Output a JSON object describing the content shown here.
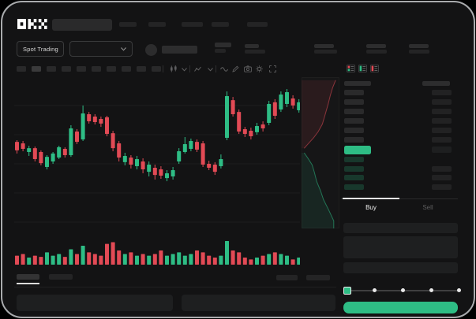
{
  "brand": {
    "name": "OKX"
  },
  "colors": {
    "up_green": "#2ebd85",
    "down_red": "#e24a55",
    "buy_button": "#2ebd85",
    "tab_underline": "#e8e8e8",
    "grid_line": "rgba(255,255,255,0.045)"
  },
  "market_bar": {
    "market_type_selector": "Spot Trading"
  },
  "toolbar": {
    "interval_buttons": 10,
    "active_interval_index": 1
  },
  "order_book": {
    "ask_rows": 6,
    "bid_rows": 4
  },
  "trade_panel": {
    "buy_tab": "Buy",
    "sell_tab": "Sell",
    "slider_stops": 5,
    "slider_value_index": 0
  },
  "chart_data": [
    {
      "type": "candlestick",
      "title": "",
      "xlabel": "",
      "ylabel": "",
      "note": "price axis unlabeled in mockup; OHLC in relative 0-100 scale",
      "ylim": [
        0,
        100
      ],
      "grid": true,
      "candles": [
        [
          58.9,
          60.0,
          51.1,
          53.2
        ],
        [
          57.9,
          59.5,
          52.6,
          54.2
        ],
        [
          52.1,
          56.3,
          49.5,
          54.7
        ],
        [
          54.7,
          55.8,
          45.8,
          47.4
        ],
        [
          52.1,
          53.2,
          43.2,
          44.7
        ],
        [
          42.1,
          50.0,
          40.5,
          48.9
        ],
        [
          45.8,
          52.1,
          44.2,
          51.1
        ],
        [
          48.4,
          56.3,
          47.4,
          55.3
        ],
        [
          54.2,
          55.3,
          48.4,
          50.0
        ],
        [
          50.0,
          70.0,
          48.9,
          67.9
        ],
        [
          65.8,
          67.4,
          57.4,
          58.9
        ],
        [
          60.5,
          83.2,
          59.5,
          77.9
        ],
        [
          77.4,
          78.9,
          71.1,
          72.6
        ],
        [
          75.8,
          77.4,
          70.5,
          72.1
        ],
        [
          74.2,
          75.8,
          68.9,
          71.1
        ],
        [
          75.3,
          76.3,
          62.6,
          64.2
        ],
        [
          64.7,
          66.3,
          52.6,
          54.7
        ],
        [
          57.9,
          59.5,
          45.8,
          48.4
        ],
        [
          45.3,
          51.6,
          43.2,
          49.5
        ],
        [
          48.4,
          50.0,
          41.1,
          43.7
        ],
        [
          42.6,
          49.5,
          40.5,
          47.4
        ],
        [
          45.8,
          47.9,
          37.9,
          40.5
        ],
        [
          38.9,
          45.8,
          35.8,
          43.7
        ],
        [
          41.6,
          43.7,
          33.7,
          36.8
        ],
        [
          40.5,
          42.6,
          34.2,
          36.3
        ],
        [
          34.7,
          40.0,
          32.6,
          37.9
        ],
        [
          35.8,
          42.1,
          33.7,
          40.0
        ],
        [
          45.8,
          54.7,
          44.2,
          52.6
        ],
        [
          52.1,
          62.1,
          51.1,
          57.4
        ],
        [
          54.2,
          61.1,
          52.6,
          59.5
        ],
        [
          58.9,
          60.5,
          52.1,
          53.7
        ],
        [
          57.9,
          59.5,
          42.1,
          43.7
        ],
        [
          44.2,
          46.3,
          40.0,
          41.6
        ],
        [
          43.7,
          45.3,
          36.8,
          38.9
        ],
        [
          42.6,
          50.5,
          41.1,
          47.4
        ],
        [
          61.6,
          92.6,
          60.0,
          89.5
        ],
        [
          86.8,
          88.9,
          75.8,
          77.4
        ],
        [
          78.9,
          80.5,
          64.2,
          65.8
        ],
        [
          67.4,
          68.9,
          62.1,
          64.2
        ],
        [
          66.3,
          68.4,
          60.5,
          62.6
        ],
        [
          65.3,
          71.6,
          63.7,
          69.5
        ],
        [
          70.5,
          72.6,
          65.8,
          67.9
        ],
        [
          71.6,
          86.3,
          70.0,
          84.2
        ],
        [
          85.3,
          87.4,
          74.2,
          76.3
        ],
        [
          80.5,
          92.6,
          78.9,
          90.5
        ],
        [
          84.2,
          94.2,
          82.1,
          92.1
        ],
        [
          87.9,
          90.0,
          81.1,
          83.2
        ],
        [
          80.0,
          87.4,
          78.4,
          85.3
        ]
      ]
    },
    {
      "type": "bar",
      "name": "volume",
      "note": "volume in % of max bar; color follows candle direction",
      "values": [
        38,
        45,
        30,
        38,
        33,
        52,
        38,
        45,
        33,
        65,
        45,
        80,
        52,
        45,
        38,
        88,
        95,
        60,
        45,
        52,
        38,
        45,
        38,
        45,
        60,
        38,
        45,
        52,
        38,
        45,
        60,
        52,
        38,
        30,
        38,
        100,
        60,
        52,
        30,
        22,
        30,
        38,
        45,
        52,
        45,
        38,
        22,
        30
      ]
    },
    {
      "type": "area",
      "name": "depth",
      "note": "vertical market-depth beside order book; points as [x%,y%] of panel",
      "asks": [
        [
          90,
          2
        ],
        [
          82,
          7
        ],
        [
          76,
          12
        ],
        [
          70,
          18
        ],
        [
          62,
          25
        ],
        [
          55,
          31
        ],
        [
          44,
          36
        ],
        [
          32,
          40
        ],
        [
          14,
          45
        ],
        [
          7,
          47
        ]
      ],
      "bids": [
        [
          7,
          50
        ],
        [
          18,
          54
        ],
        [
          28,
          58
        ],
        [
          34,
          63
        ],
        [
          40,
          69
        ],
        [
          50,
          75
        ],
        [
          58,
          81
        ],
        [
          72,
          88
        ],
        [
          85,
          95
        ],
        [
          85,
          100
        ]
      ]
    }
  ]
}
